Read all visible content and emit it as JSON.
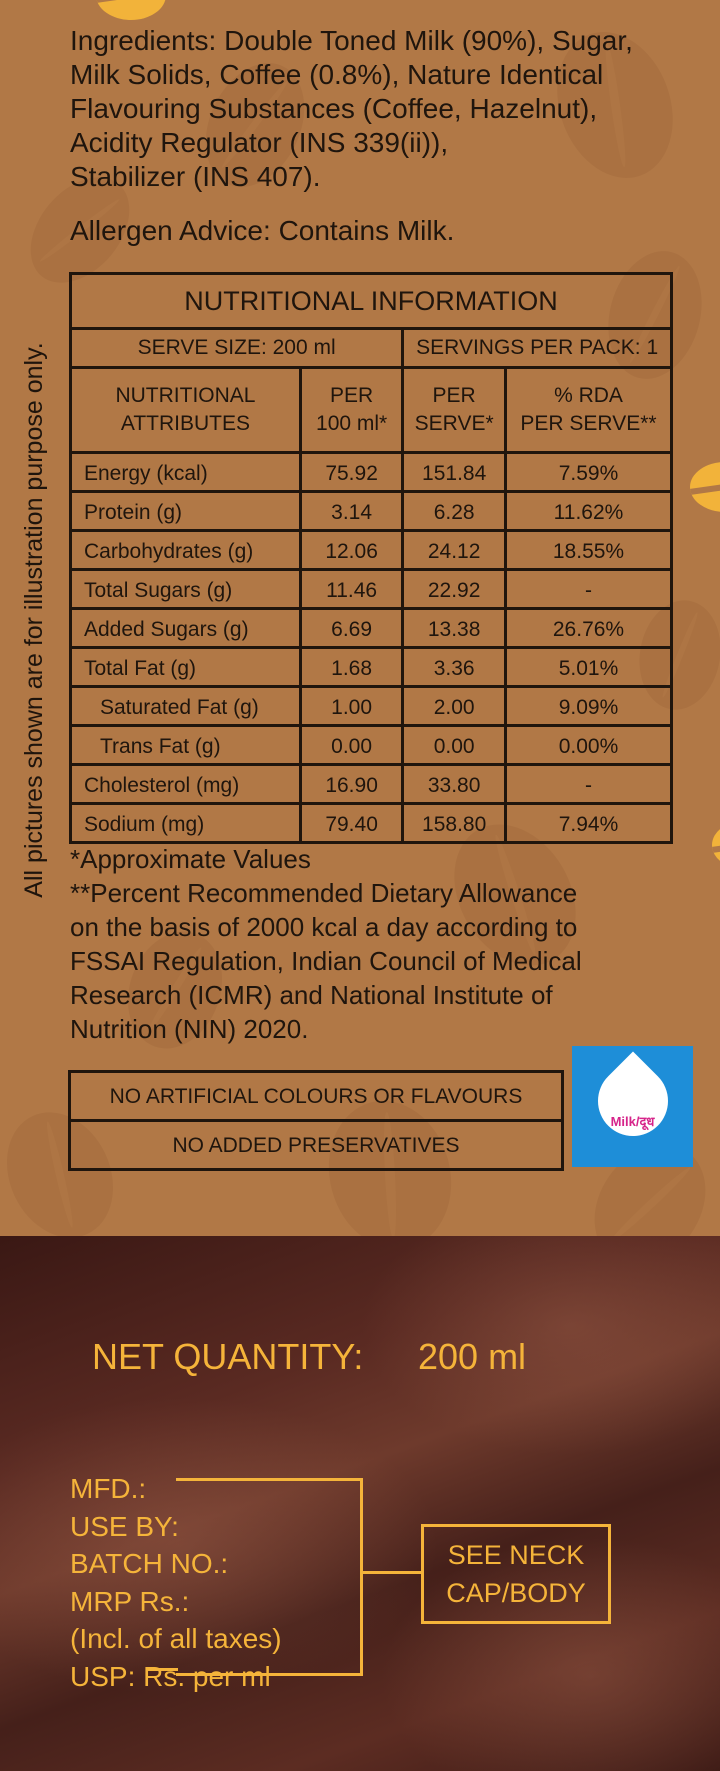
{
  "ingredients": {
    "lines": [
      "Ingredients: Double Toned Milk (90%), Sugar,",
      "Milk Solids, Coffee (0.8%), Nature Identical",
      "Flavouring Substances (Coffee, Hazelnut),",
      "Acidity Regulator (INS 339(ii)),",
      "Stabilizer (INS 407)."
    ]
  },
  "allergen": "Allergen Advice: Contains Milk.",
  "side_note": "All pictures shown are for illustration purpose only.",
  "nutrition": {
    "title": "NUTRITIONAL INFORMATION",
    "serve_size": "SERVE SIZE: 200 ml",
    "servings_per_pack": "SERVINGS PER PACK: 1",
    "headers": {
      "attr_1": "NUTRITIONAL",
      "attr_2": "ATTRIBUTES",
      "per100_1": "PER",
      "per100_2": "100 ml*",
      "perserve_1": "PER",
      "perserve_2": "SERVE*",
      "rda_1": "% RDA",
      "rda_2": "PER SERVE**"
    },
    "rows": [
      {
        "name": "Energy (kcal)",
        "per100": "75.92",
        "perserve": "151.84",
        "rda": "7.59%"
      },
      {
        "name": "Protein (g)",
        "per100": "3.14",
        "perserve": "6.28",
        "rda": "11.62%"
      },
      {
        "name": "Carbohydrates (g)",
        "per100": "12.06",
        "perserve": "24.12",
        "rda": "18.55%"
      },
      {
        "name": "Total Sugars (g)",
        "per100": "11.46",
        "perserve": "22.92",
        "rda": "-"
      },
      {
        "name": "Added Sugars (g)",
        "per100": "6.69",
        "perserve": "13.38",
        "rda": "26.76%"
      },
      {
        "name": "Total Fat (g)",
        "per100": "1.68",
        "perserve": "3.36",
        "rda": "5.01%"
      },
      {
        "name": "Saturated Fat (g)",
        "per100": "1.00",
        "perserve": "2.00",
        "rda": "9.09%"
      },
      {
        "name": "Trans Fat (g)",
        "per100": "0.00",
        "perserve": "0.00",
        "rda": "0.00%"
      },
      {
        "name": "Cholesterol (mg)",
        "per100": "16.90",
        "perserve": "33.80",
        "rda": "-"
      },
      {
        "name": "Sodium (mg)",
        "per100": "79.40",
        "perserve": "158.80",
        "rda": "7.94%"
      }
    ]
  },
  "notes": {
    "lines": [
      "*Approximate Values",
      "**Percent Recommended Dietary Allowance",
      "on the basis of 2000 kcal a day according to",
      "FSSAI Regulation, Indian Council of Medical",
      "Research (ICMR) and National Institute of",
      "Nutrition (NIN) 2020."
    ]
  },
  "claims": {
    "no_artificial": "NO ARTIFICIAL COLOURS OR FLAVOURS",
    "no_preservatives": "NO ADDED PRESERVATIVES"
  },
  "milk_logo": {
    "label": "Milk/दूध",
    "icon": "milk-drop-icon",
    "bg_color": "#1e8ed8"
  },
  "net_quantity": {
    "label": "NET QUANTITY:",
    "value": "200 ml"
  },
  "pack_info": {
    "lines": [
      "MFD.:",
      "USE BY:",
      "BATCH NO.:",
      "MRP Rs.:",
      "(Incl. of all taxes)",
      "USP: Rs. per ml"
    ],
    "see_line_1": "SEE NECK",
    "see_line_2": "CAP/BODY"
  },
  "colors": {
    "top_bg": "#b17846",
    "text_dark": "#1f150d",
    "accent_yellow": "#f5b43a",
    "bottom_bg": "#4a221b"
  }
}
